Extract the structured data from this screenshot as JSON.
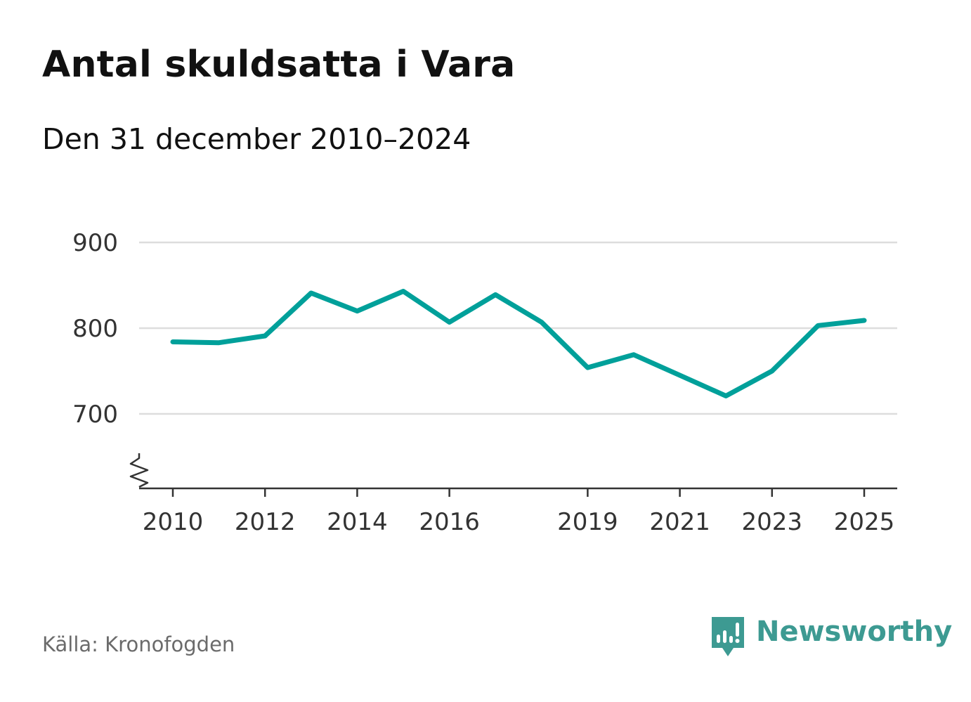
{
  "title": "Antal skuldsatta i Vara",
  "subtitle": "Den 31 december 2010–2024",
  "source": "Källa: Kronofogden",
  "brand": {
    "name": "Newsworthy",
    "icon": "newsworthy-logo-icon",
    "color": "#3d9a92"
  },
  "colors": {
    "line": "#00a09a",
    "grid": "#dddddd",
    "axis": "#333333"
  },
  "chart_data": {
    "type": "line",
    "title": "Antal skuldsatta i Vara",
    "subtitle": "Den 31 december 2010–2024",
    "xlabel": "",
    "ylabel": "",
    "grid": true,
    "y_axis_break": true,
    "x": [
      2010,
      2011,
      2012,
      2013,
      2014,
      2015,
      2016,
      2017,
      2018,
      2019,
      2020,
      2021,
      2022,
      2023,
      2024,
      2025
    ],
    "series": [
      {
        "name": "Antal skuldsatta",
        "values": [
          784,
          783,
          791,
          841,
          820,
          843,
          807,
          839,
          807,
          754,
          769,
          745,
          721,
          750,
          803,
          809
        ]
      }
    ],
    "xlim": [
      2010,
      2025
    ],
    "ylim": [
      700,
      900
    ],
    "x_ticks": [
      {
        "value": 2010,
        "label": "2010"
      },
      {
        "value": 2012,
        "label": "2012"
      },
      {
        "value": 2014,
        "label": "2014"
      },
      {
        "value": 2016,
        "label": "2016"
      },
      {
        "value": 2019,
        "label": "2019"
      },
      {
        "value": 2021,
        "label": "2021"
      },
      {
        "value": 2023,
        "label": "2023"
      },
      {
        "value": 2025,
        "label": "2025"
      }
    ],
    "y_ticks": [
      {
        "value": 900,
        "label": "900"
      },
      {
        "value": 800,
        "label": "800"
      },
      {
        "value": 700,
        "label": "700"
      }
    ]
  }
}
